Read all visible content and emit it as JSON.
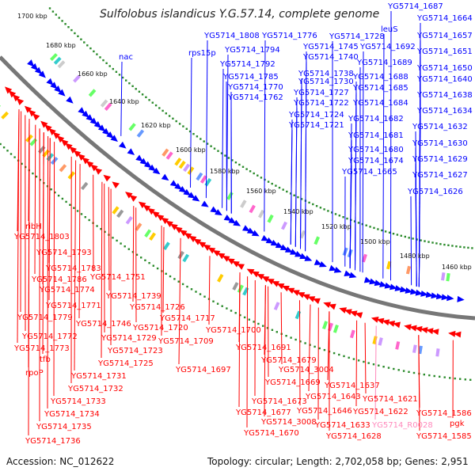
{
  "title": "Sulfolobus islandicus Y.G.57.14, complete genome",
  "footer": {
    "accession": "Accession: NC_012622",
    "summary": "Topology: circular; Length: 2,702,058 bp; Genes: 2,951"
  },
  "colors": {
    "forward": "#0000ff",
    "reverse": "#ff0000",
    "rna": "#ff88bb",
    "backbone": "#777777",
    "gc_dots": "#2a8a2a",
    "text": "#111111"
  },
  "kbp_labels": [
    "1700 kbp",
    "1680 kbp",
    "1660 kbp",
    "1640 kbp",
    "1620 kbp",
    "1600 kbp",
    "1580 kbp",
    "1560 kbp",
    "1540 kbp",
    "1520 kbp",
    "1500 kbp",
    "1480 kbp",
    "1460 kbp"
  ],
  "top_labels": [
    "YG5714_1687",
    "YG5714_1664",
    "YG5714_1657",
    "YG5714_1651",
    "YG5714_1650",
    "YG5714_1640",
    "YG5714_1638",
    "YG5714_1634",
    "YG5714_1632",
    "YG5714_1630",
    "YG5714_1629",
    "YG5714_1627",
    "YG5714_1626",
    "leuS",
    "YG5714_1692",
    "YG5714_1689",
    "YG5714_1688",
    "YG5714_1685",
    "YG5714_1684",
    "YG5714_1682",
    "YG5714_1681",
    "YG5714_1680",
    "YG5714_1674",
    "YG5714_1665",
    "YG5714_1728",
    "YG5714_1745",
    "YG5714_1740",
    "YG5714_1738",
    "YG5714_1730",
    "YG5714_1727",
    "YG5714_1722",
    "YG5714_1724",
    "YG5714_1721",
    "YG5714_1808",
    "YG5714_1776",
    "YG5714_1794",
    "YG5714_1792",
    "YG5714_1785",
    "YG5714_1770",
    "YG5714_1762",
    "rps15p",
    "nac"
  ],
  "bottom_labels": [
    "ribH",
    "YG5714_1803",
    "YG5714_1793",
    "YG5714_1783",
    "YG5714_1786",
    "YG5714_1751",
    "YG5714_1774",
    "YG5714_1771",
    "YG5714_1739",
    "YG5714_1779",
    "YG5714_1746",
    "YG5714_1726",
    "YG5714_1717",
    "YG5714_1720",
    "YG5714_1772",
    "YG5714_1729",
    "YG5714_1709",
    "YG5714_1773",
    "YG5714_1723",
    "tfb",
    "YG5714_1725",
    "rpoP",
    "YG5714_1731",
    "YG5714_1732",
    "YG5714_1733",
    "YG5714_1734",
    "YG5714_1735",
    "YG5714_1736",
    "YG5714_1700",
    "YG5714_1691",
    "YG5714_1697",
    "YG5714_1679",
    "YG5714_3004",
    "YG5714_1669",
    "YG5714_1673",
    "YG5714_1677",
    "YG5714_3008",
    "YG5714_1670",
    "YG5714_1637",
    "YG5714_1643",
    "YG5714_1646",
    "YG5714_1633",
    "YG5714_1628",
    "YG5714_1621",
    "YG5714_1622",
    "YG5714_R0028",
    "YG5714_1586",
    "pgk",
    "YG5714_1585"
  ]
}
